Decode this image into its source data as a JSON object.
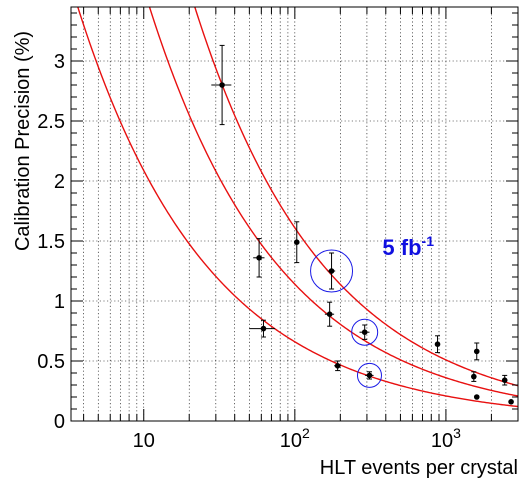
{
  "chart_data": {
    "type": "scatter",
    "title": "",
    "xlabel": "HLT events per crystal",
    "ylabel": "Calibration Precision (%)",
    "x_scale": "log",
    "xlim": [
      3.3,
      3000
    ],
    "ylim": [
      0,
      3.45
    ],
    "grid": true,
    "x_ticks": [
      {
        "value": 10,
        "label": "10",
        "sup": ""
      },
      {
        "value": 100,
        "label": "10",
        "sup": "2"
      },
      {
        "value": 1000,
        "label": "10",
        "sup": "3"
      }
    ],
    "y_ticks": [
      {
        "value": 0,
        "label": "0"
      },
      {
        "value": 0.5,
        "label": "0.5"
      },
      {
        "value": 1,
        "label": "1"
      },
      {
        "value": 1.5,
        "label": "1.5"
      },
      {
        "value": 2,
        "label": "2"
      },
      {
        "value": 2.5,
        "label": "2.5"
      },
      {
        "value": 3,
        "label": "3"
      }
    ],
    "series": [
      {
        "points": [
          {
            "x": 33,
            "y": 2.8,
            "xerr": 5,
            "yerr": 0.33
          },
          {
            "x": 103,
            "y": 1.49,
            "xerr": 0,
            "yerr": 0.17
          },
          {
            "x": 175,
            "y": 1.25,
            "xerr": 10,
            "yerr": 0.15
          },
          {
            "x": 880,
            "y": 0.64,
            "xerr": 0,
            "yerr": 0.07
          },
          {
            "x": 1600,
            "y": 0.58,
            "xerr": 0,
            "yerr": 0.07
          }
        ],
        "fit": {
          "a": 16.1,
          "b": 0.5
        }
      },
      {
        "points": [
          {
            "x": 58,
            "y": 1.36,
            "xerr": 5,
            "yerr": 0.16
          },
          {
            "x": 170,
            "y": 0.89,
            "xerr": 12,
            "yerr": 0.1
          },
          {
            "x": 290,
            "y": 0.74,
            "xerr": 22,
            "yerr": 0.06
          },
          {
            "x": 1530,
            "y": 0.37,
            "xerr": 0,
            "yerr": 0.04
          },
          {
            "x": 2450,
            "y": 0.34,
            "xerr": 0,
            "yerr": 0.04
          }
        ],
        "fit": {
          "a": 11.4,
          "b": 0.5
        }
      },
      {
        "points": [
          {
            "x": 62,
            "y": 0.77,
            "xerr": 12,
            "yerr": 0.07
          },
          {
            "x": 192,
            "y": 0.46,
            "xerr": 10,
            "yerr": 0.04
          },
          {
            "x": 312,
            "y": 0.38,
            "xerr": 20,
            "yerr": 0.03
          },
          {
            "x": 1600,
            "y": 0.2,
            "xerr": 0,
            "yerr": 0
          },
          {
            "x": 2700,
            "y": 0.16,
            "xerr": 0,
            "yerr": 0
          }
        ],
        "fit": {
          "a": 6.6,
          "b": 0.5
        }
      }
    ],
    "highlights": [
      {
        "x": 175,
        "y": 1.25,
        "r": 21
      },
      {
        "x": 290,
        "y": 0.74,
        "r": 13
      },
      {
        "x": 312,
        "y": 0.38,
        "r": 12
      }
    ],
    "annotation": {
      "text": "5 fb",
      "sup": "-1",
      "x": 380,
      "y": 1.45
    },
    "colors": {
      "fit": "#e81010",
      "highlight": "#1a1ae6",
      "annotation": "#1010e0",
      "marker": "#000000",
      "grid": "#000000"
    }
  }
}
